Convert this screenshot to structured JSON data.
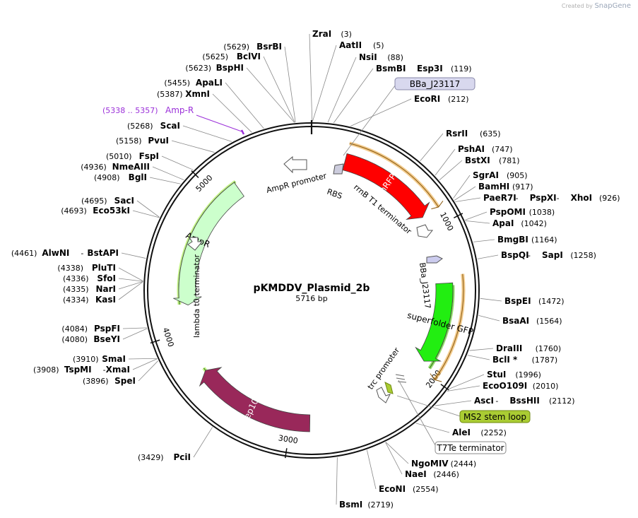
{
  "watermark": {
    "prefix": "Created by",
    "brand": "SnapGene"
  },
  "plasmid": {
    "name": "pKMDDV_Plasmid_2b",
    "length_label": "5716 bp",
    "length": 5716
  },
  "ticks": [
    {
      "pos": 1000,
      "label": "1000"
    },
    {
      "pos": 2000,
      "label": "2000"
    },
    {
      "pos": 3000,
      "label": "3000"
    },
    {
      "pos": 4000,
      "label": "4000"
    },
    {
      "pos": 5000,
      "label": "5000"
    }
  ],
  "sites_right": [
    {
      "names": [
        "ZraI"
      ],
      "pos": "(3)",
      "bp": 3
    },
    {
      "names": [
        "AatII"
      ],
      "pos": "(5)",
      "bp": 5
    },
    {
      "names": [
        "NsiI"
      ],
      "pos": "(88)",
      "bp": 88
    },
    {
      "names": [
        "BsmBI",
        "Esp3I"
      ],
      "pos": "(119)",
      "bp": 119
    },
    {
      "names": [
        "EcoRI"
      ],
      "pos": "(212)",
      "bp": 212
    },
    {
      "names": [
        "RsrII"
      ],
      "pos": "(635)",
      "bp": 635
    },
    {
      "names": [
        "PshAI"
      ],
      "pos": "(747)",
      "bp": 747
    },
    {
      "names": [
        "BstXI"
      ],
      "pos": "(781)",
      "bp": 781
    },
    {
      "names": [
        "SgrAI"
      ],
      "pos": "(905)",
      "bp": 905
    },
    {
      "names": [
        "BamHI"
      ],
      "pos": "(917)",
      "bp": 917
    },
    {
      "names": [
        "PaeR7I",
        "PspXI",
        "XhoI"
      ],
      "pos": "(926)",
      "bp": 926
    },
    {
      "names": [
        "PspOMI"
      ],
      "pos": "(1038)",
      "bp": 1038
    },
    {
      "names": [
        "ApaI"
      ],
      "pos": "(1042)",
      "bp": 1042
    },
    {
      "names": [
        "BmgBI"
      ],
      "pos": "(1164)",
      "bp": 1164
    },
    {
      "names": [
        "BspQI",
        "SapI"
      ],
      "pos": "(1258)",
      "bp": 1258
    },
    {
      "names": [
        "BspEI"
      ],
      "pos": "(1472)",
      "bp": 1472
    },
    {
      "names": [
        "BsaAI"
      ],
      "pos": "(1564)",
      "bp": 1564
    },
    {
      "names": [
        "DraIII"
      ],
      "pos": "(1760)",
      "bp": 1760
    },
    {
      "names": [
        "BclI *"
      ],
      "pos": "(1787)",
      "bp": 1787
    },
    {
      "names": [
        "StuI"
      ],
      "pos": "(1996)",
      "bp": 1996
    },
    {
      "names": [
        "EcoO109I"
      ],
      "pos": "(2010)",
      "bp": 2010
    },
    {
      "names": [
        "AscI",
        "BssHII"
      ],
      "pos": "(2112)",
      "bp": 2112
    },
    {
      "names": [
        "AleI"
      ],
      "pos": "(2252)",
      "bp": 2252
    },
    {
      "names": [
        "NgoMIV"
      ],
      "pos": "(2444)",
      "bp": 2444
    },
    {
      "names": [
        "NaeI"
      ],
      "pos": "(2446)",
      "bp": 2446
    },
    {
      "names": [
        "EcoNI"
      ],
      "pos": "(2554)",
      "bp": 2554
    },
    {
      "names": [
        "BsmI"
      ],
      "pos": "(2719)",
      "bp": 2719
    }
  ],
  "sites_left": [
    {
      "names": [
        "PciI"
      ],
      "pos": "(3429)",
      "bp": 3429
    },
    {
      "names": [
        "SpeI"
      ],
      "pos": "(3896)",
      "bp": 3896
    },
    {
      "names": [
        "TspMI",
        "XmaI"
      ],
      "pos": "(3908)",
      "bp": 3908
    },
    {
      "names": [
        "SmaI"
      ],
      "pos": "(3910)",
      "bp": 3910
    },
    {
      "names": [
        "BseYI"
      ],
      "pos": "(4080)",
      "bp": 4080
    },
    {
      "names": [
        "PspFI"
      ],
      "pos": "(4084)",
      "bp": 4084
    },
    {
      "names": [
        "KasI"
      ],
      "pos": "(4334)",
      "bp": 4334
    },
    {
      "names": [
        "NarI"
      ],
      "pos": "(4335)",
      "bp": 4335
    },
    {
      "names": [
        "SfoI"
      ],
      "pos": "(4336)",
      "bp": 4336
    },
    {
      "names": [
        "PluTI"
      ],
      "pos": "(4338)",
      "bp": 4338
    },
    {
      "names": [
        "AlwNI",
        "BstAPI"
      ],
      "pos": "(4461)",
      "bp": 4461
    },
    {
      "names": [
        "Eco53kI"
      ],
      "pos": "(4693)",
      "bp": 4693
    },
    {
      "names": [
        "SacI"
      ],
      "pos": "(4695)",
      "bp": 4695
    },
    {
      "names": [
        "BglI"
      ],
      "pos": "(4908)",
      "bp": 4908
    },
    {
      "names": [
        "NmeAIII"
      ],
      "pos": "(4936)",
      "bp": 4936
    },
    {
      "names": [
        "FspI"
      ],
      "pos": "(5010)",
      "bp": 5010
    },
    {
      "names": [
        "PvuI"
      ],
      "pos": "(5158)",
      "bp": 5158
    },
    {
      "names": [
        "ScaI"
      ],
      "pos": "(5268)",
      "bp": 5268
    },
    {
      "names": [
        "XmnI"
      ],
      "pos": "(5387)",
      "bp": 5387
    },
    {
      "names": [
        "ApaLI"
      ],
      "pos": "(5455)",
      "bp": 5455
    },
    {
      "names": [
        "BspHI"
      ],
      "pos": "(5623)",
      "bp": 5623
    },
    {
      "names": [
        "BclVI"
      ],
      "pos": "(5625)",
      "bp": 5625
    },
    {
      "names": [
        "BsrBI"
      ],
      "pos": "(5629)",
      "bp": 5629
    }
  ],
  "feature_region_label": {
    "range": "(5338 .. 5357)",
    "name": "Amp-R",
    "color": "#9b30d9"
  },
  "boxed_labels": [
    {
      "text": "BBa_J23117",
      "fill": "#d8d8ee",
      "stroke": "#8888aa"
    },
    {
      "text": "MS2 stem loop",
      "fill": "#aacc33",
      "stroke": "#6f8a10"
    },
    {
      "text": "T7Te terminator",
      "fill": "#ffffff",
      "stroke": "#888888"
    }
  ],
  "features": [
    {
      "name": "mRFP1",
      "start": 230,
      "end": 900,
      "color": "#ff0000",
      "text_color": "#ffffff"
    },
    {
      "name": "superfolder GFP",
      "start": 1380,
      "end": 1940,
      "color": "#22ee11",
      "text_color": "#000000"
    },
    {
      "name": "Rep101",
      "start": 2870,
      "end": 3700,
      "color": "#99285a",
      "text_color": "#ffffff"
    },
    {
      "name": "AmpR",
      "start": 4180,
      "end": 5150,
      "color": "#ccffcc",
      "text_color": "#000000"
    }
  ],
  "orange_arcs": [
    {
      "start": 230,
      "end": 900,
      "color": "#e8a030"
    },
    {
      "start": 1330,
      "end": 2000,
      "color": "#e8a030"
    }
  ],
  "green_arcs": [
    {
      "start": 1395,
      "end": 1960,
      "color": "#66cc33"
    },
    {
      "start": 2900,
      "end": 3720,
      "color": "#aaee55"
    },
    {
      "start": 4190,
      "end": 5160,
      "color": "#aaee55"
    }
  ],
  "feature_labels": {
    "ampr_promoter": "AmpR promoter",
    "rbs": "RBS",
    "rrnb": "rrnB T1 terminator",
    "bba": "BBa_J23117",
    "trc": "trc promoter",
    "lambda": "lambda t0 terminator"
  }
}
